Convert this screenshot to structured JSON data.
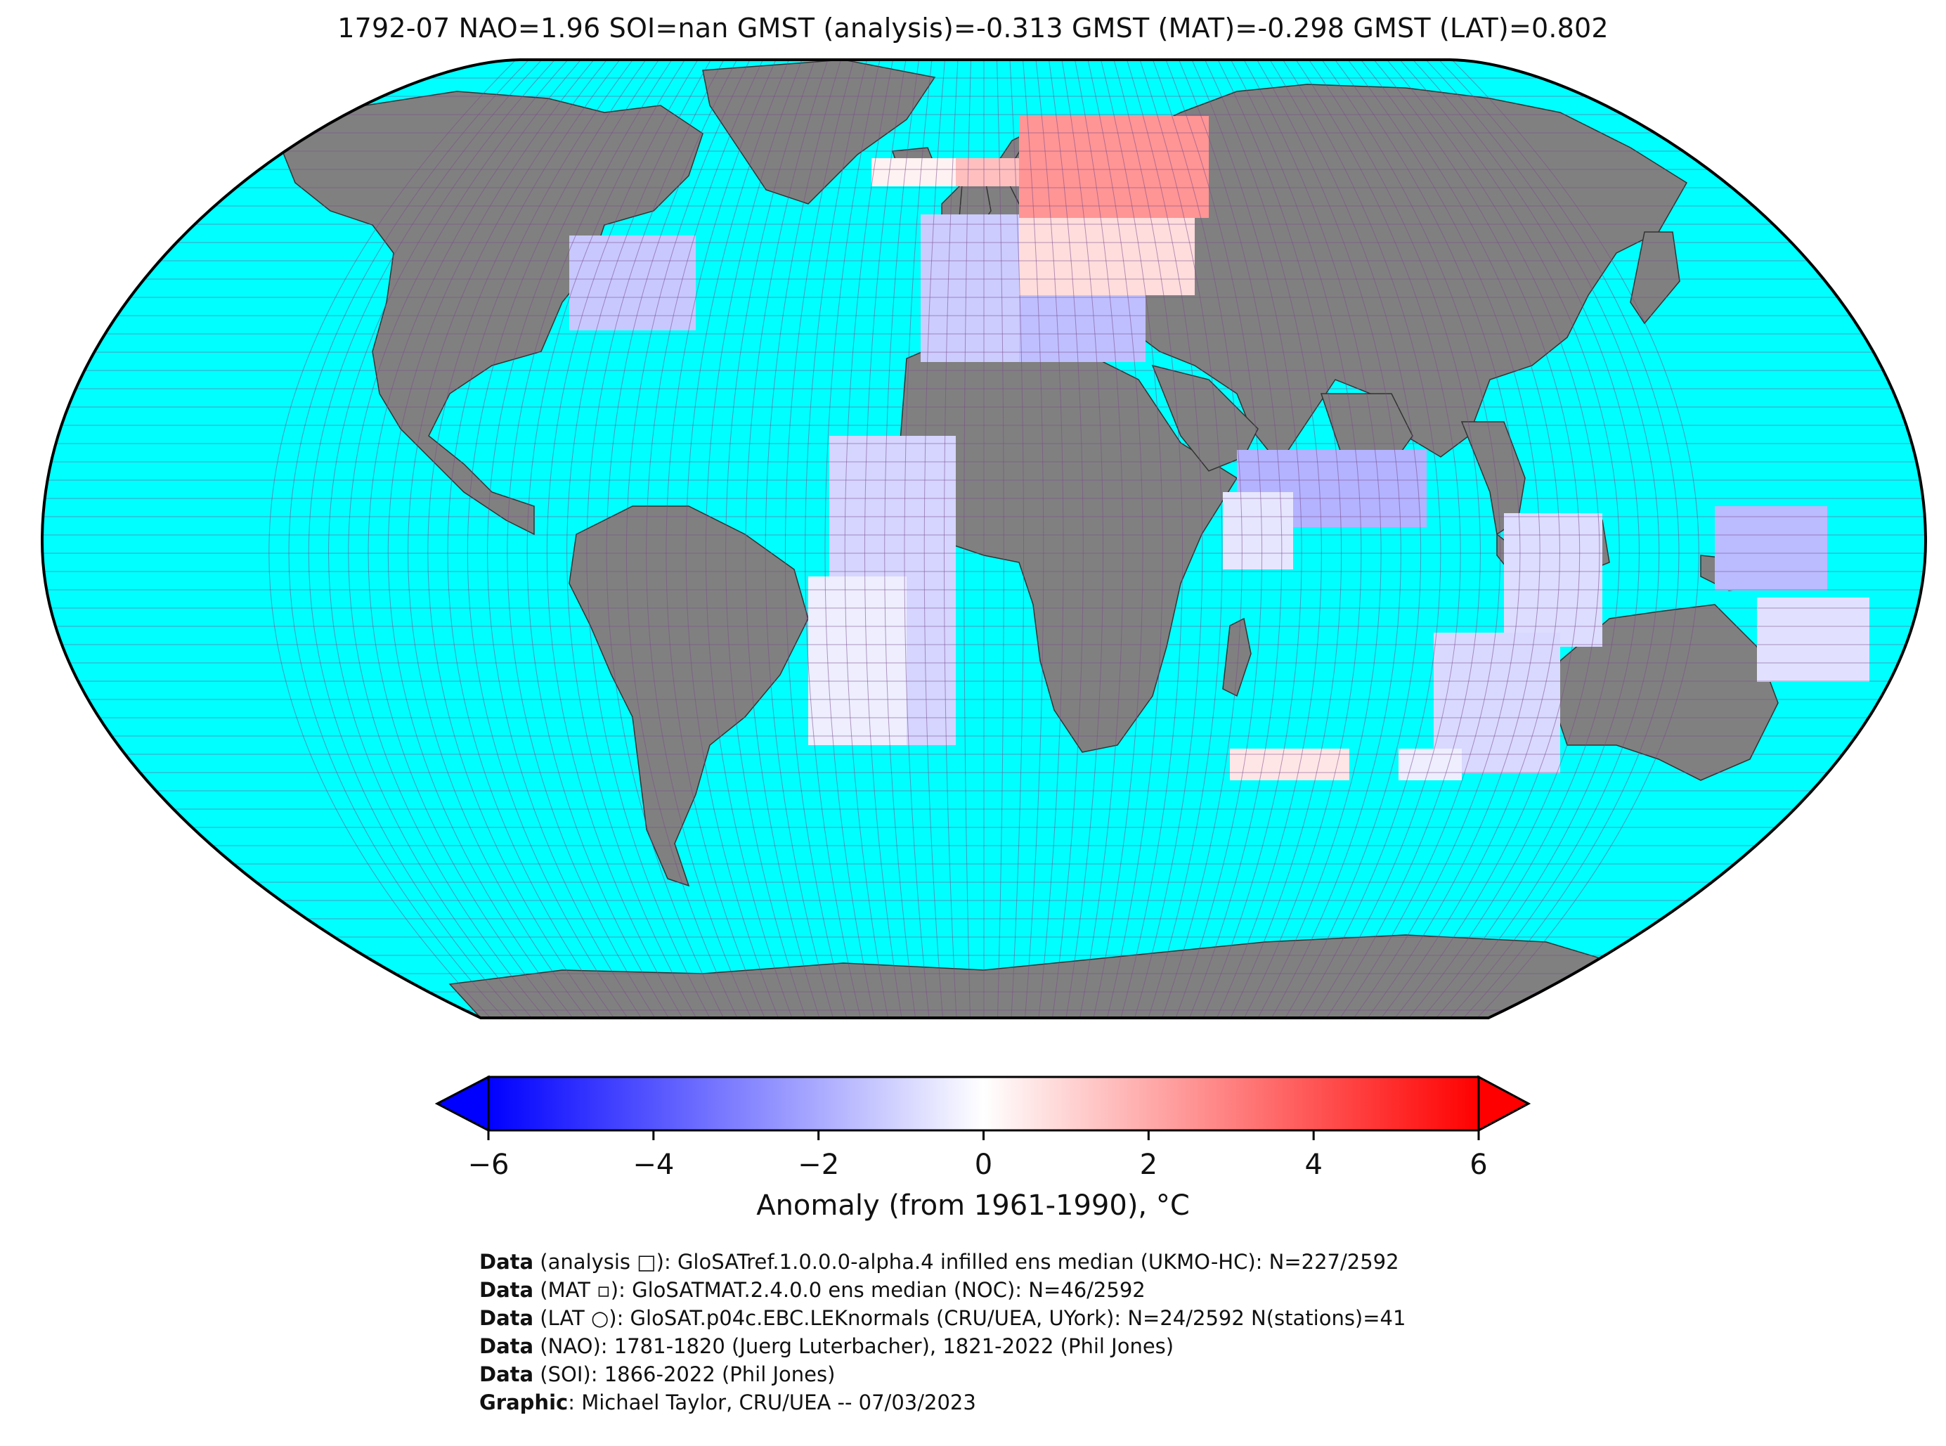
{
  "title": "1792-07 NAO=1.96 SOI=nan GMST (analysis)=-0.313 GMST (MAT)=-0.298 GMST (LAT)=0.802",
  "colorbar": {
    "label": "Anomaly (from 1961-1990), °C",
    "ticks": [
      "−6",
      "−4",
      "−2",
      "0",
      "2",
      "4",
      "6"
    ],
    "tick_values": [
      -6,
      -4,
      -2,
      0,
      2,
      4,
      6
    ],
    "range": [
      -6,
      6
    ],
    "colors": {
      "low": "#0000ff",
      "mid": "#ffffff",
      "high": "#ff0000"
    }
  },
  "map": {
    "projection": "Robinson",
    "ocean_color": "#00ffff",
    "land_color": "#808080",
    "grid_color": "#7a4a8a"
  },
  "credits": [
    {
      "head": "Data",
      "text": " (analysis □): GloSATref.1.0.0.0-alpha.4 infilled ens median (UKMO-HC): N=227/2592"
    },
    {
      "head": "Data",
      "text": " (MAT ▫): GloSATMAT.2.4.0.0 ens median (NOC): N=46/2592"
    },
    {
      "head": "Data",
      "text": " (LAT ○): GloSAT.p04c.EBC.LEKnormals (CRU/UEA, UYork): N=24/2592 N(stations)=41"
    },
    {
      "head": "Data",
      "text": " (NAO): 1781-1820 (Juerg Luterbacher), 1821-2022 (Phil Jones)"
    },
    {
      "head": "Data",
      "text": " (SOI): 1866-2022 (Phil Jones)"
    },
    {
      "head": "Graphic",
      "text": ": Michael Taylor, CRU/UEA -- 07/03/2023"
    }
  ]
}
